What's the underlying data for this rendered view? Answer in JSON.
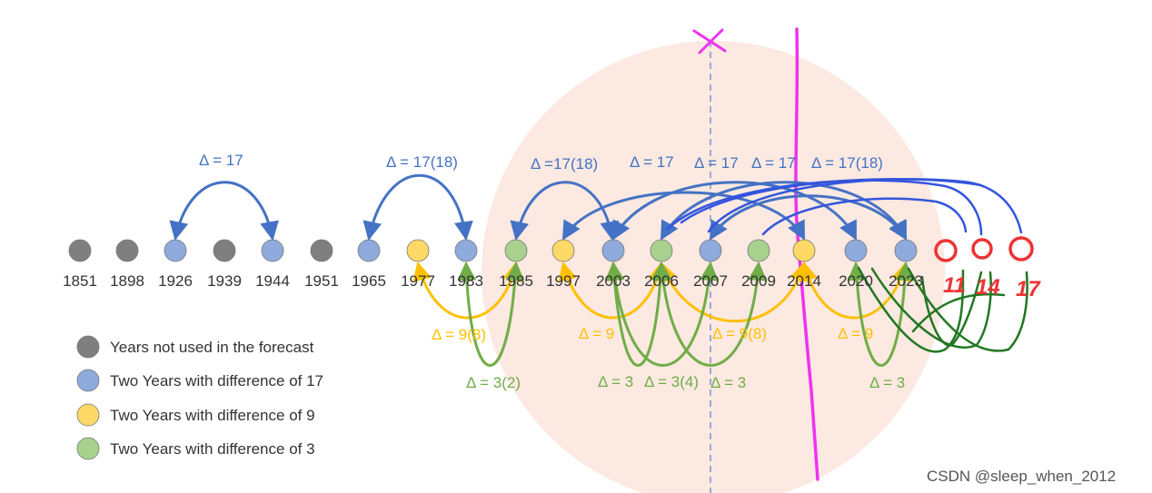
{
  "colors": {
    "gray": "#7f7f7f",
    "blue": "#8faadc",
    "blue_arc": "#4472c4",
    "yellow": "#ffd966",
    "yellow_arc": "#ffc000",
    "green": "#a9d18e",
    "green_arc": "#70ad47",
    "red_mark": "#ee3333",
    "magenta": "#ee33ee",
    "marker_blue": "#3355dd",
    "marker_green": "#227722",
    "circle_bg": "#fbe5dc"
  },
  "timeline": [
    {
      "year": "1851",
      "category": "gray"
    },
    {
      "year": "1898",
      "category": "gray"
    },
    {
      "year": "1926",
      "category": "blue"
    },
    {
      "year": "1939",
      "category": "gray"
    },
    {
      "year": "1944",
      "category": "blue"
    },
    {
      "year": "1951",
      "category": "gray"
    },
    {
      "year": "1965",
      "category": "blue"
    },
    {
      "year": "1977",
      "category": "yellow"
    },
    {
      "year": "1983",
      "category": "blue"
    },
    {
      "year": "1985",
      "category": "green"
    },
    {
      "year": "1997",
      "category": "yellow"
    },
    {
      "year": "2003",
      "category": "blue"
    },
    {
      "year": "2006",
      "category": "green"
    },
    {
      "year": "2007",
      "category": "blue"
    },
    {
      "year": "2009",
      "category": "green"
    },
    {
      "year": "2014",
      "category": "yellow"
    },
    {
      "year": "2020",
      "category": "blue"
    },
    {
      "year": "2023",
      "category": "blue"
    }
  ],
  "arc_labels": {
    "blue": [
      "Δ = 17",
      "Δ = 17(18)",
      "Δ =17(18)",
      "Δ = 17",
      "Δ = 17",
      "Δ = 17",
      "Δ = 17(18)"
    ],
    "yellow": [
      "Δ = 9(8)",
      "Δ = 9",
      "Δ = 9(8)",
      "Δ = 9"
    ],
    "green": [
      "Δ = 3(2)",
      "Δ = 3",
      "Δ = 3(4)",
      "Δ = 3",
      "Δ = 3"
    ]
  },
  "handwritten": [
    "11",
    "14",
    "17"
  ],
  "legend": [
    {
      "label": "Years not used in the forecast",
      "category": "gray"
    },
    {
      "label": "Two Years with difference of 17",
      "category": "blue"
    },
    {
      "label": "Two Years with difference of 9",
      "category": "yellow"
    },
    {
      "label": "Two Years with difference of 3",
      "category": "green"
    }
  ],
  "watermark": "CSDN @sleep_when_2012"
}
